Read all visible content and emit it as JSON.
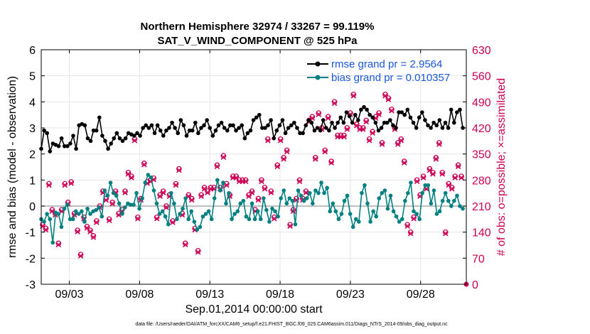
{
  "chart_data": {
    "type": "line",
    "title": "Northern Hemisphere 32974 / 33267 = 99.119%",
    "subtitle": "SAT_V_WIND_COMPONENT @ 525 hPa",
    "xlabel": "Sep.01,2014 00:00:00 start",
    "ylabel_left": "rmse and bias (model - observation)",
    "ylabel_right": "# of obs: o=possible; ×=assimilated",
    "x_ticks": [
      "09/03",
      "09/08",
      "09/13",
      "09/18",
      "09/23",
      "09/28"
    ],
    "y_left_ticks": [
      "-3",
      "-2",
      "-1",
      "0",
      "1",
      "2",
      "3",
      "4",
      "5",
      "6"
    ],
    "y_right_ticks": [
      "0",
      "70",
      "140",
      "210",
      "280",
      "350",
      "420",
      "490",
      "560",
      "630"
    ],
    "xlim_days": [
      1.0,
      31.25
    ],
    "ylim_left": [
      -3,
      6
    ],
    "ylim_right": [
      0,
      630
    ],
    "x_tick_days": [
      3,
      8,
      13,
      18,
      23,
      28
    ],
    "grid": true,
    "legend_location": "top-right",
    "series": [
      {
        "name": "rmse grand pr = 2.9564",
        "color": "#000000",
        "axis": "left",
        "values": [
          2.2,
          2.9,
          2.8,
          2.1,
          2.4,
          2.35,
          2.3,
          2.6,
          2.3,
          2.3,
          2.4,
          2.7,
          2.2,
          3.1,
          3.15,
          3.1,
          2.6,
          2.5,
          2.9,
          2.9,
          3.4,
          2.7,
          2.5,
          2.2,
          2.4,
          2.6,
          2.8,
          2.6,
          2.5,
          2.6,
          2.8,
          2.75,
          2.7,
          2.8,
          2.7,
          3.0,
          3.1,
          3.0,
          3.1,
          2.8,
          3.1,
          2.9,
          2.7,
          2.9,
          3.0,
          3.2,
          3.0,
          2.8,
          3.3,
          3.1,
          2.7,
          2.9,
          2.9,
          3.2,
          2.8,
          3.0,
          3.1,
          3.3,
          3.0,
          2.7,
          2.9,
          3.1,
          3.2,
          3.0,
          2.9,
          3.1,
          3.1,
          2.9,
          3.0,
          3.1,
          2.6,
          2.8,
          2.9,
          3.3,
          3.4,
          3.5,
          3.0,
          3.0,
          3.1,
          3.3,
          2.6,
          2.9,
          3.1,
          3.3,
          2.8,
          3.0,
          3.1,
          3.2,
          3.0,
          2.8,
          2.8,
          3.1,
          3.3,
          3.2,
          2.9,
          3.0,
          2.9,
          3.3,
          3.0,
          2.9,
          3.2,
          3.0,
          3.2,
          3.4,
          3.2,
          3.6,
          3.45,
          3.2,
          3.5,
          3.3,
          3.7,
          3.8,
          3.7,
          3.5,
          3.4,
          3.2,
          2.9,
          3.0,
          3.2,
          3.2,
          3.3,
          3.1,
          3.0,
          3.6,
          3.6,
          3.5,
          3.7,
          3.4,
          3.2,
          3.0,
          3.4,
          3.6,
          3.3,
          3.1,
          3.0,
          3.2,
          3.1,
          3.3,
          3.0,
          3.2,
          3.0,
          3.7,
          3.2,
          3.6,
          3.7,
          3.0
        ]
      },
      {
        "name": "bias grand pr = 0.010357",
        "color": "#008080",
        "axis": "left",
        "values": [
          -0.5,
          -0.6,
          -0.3,
          -0.5,
          -1.4,
          -0.25,
          -0.3,
          -0.8,
          -0.1,
          0.05,
          -0.5,
          -0.5,
          -0.2,
          -0.3,
          -0.2,
          -0.6,
          -0.1,
          -0.3,
          -0.2,
          -0.15,
          -0.05,
          -0.4,
          0.6,
          0.4,
          0.9,
          0.5,
          0.4,
          0.1,
          -0.3,
          -0.05,
          0.1,
          0.05,
          0.05,
          0.5,
          -0.1,
          0.3,
          0.9,
          1.2,
          1.1,
          0.6,
          0.1,
          -0.3,
          -0.2,
          -0.4,
          -0.7,
          0.5,
          0.1,
          -0.5,
          -0.3,
          -0.1,
          0.3,
          -0.5,
          -0.2,
          -0.6,
          -0.9,
          -0.8,
          -0.4,
          -0.3,
          -0.2,
          -0.5,
          0.3,
          1.0,
          0.6,
          0.9,
          0.1,
          0.5,
          -0.5,
          -0.3,
          -0.2,
          0.1,
          0.2,
          -0.4,
          -0.5,
          0.1,
          -0.5,
          -0.2,
          -0.5,
          0.3,
          -0.15,
          -0.6,
          -0.1,
          -0.2,
          -0.4,
          0.3,
          0.6,
          0.1,
          0.3,
          0.2,
          -0.7,
          0.6,
          0.4,
          0.2,
          0.3,
          0.5,
          0.1,
          0.6,
          0.5,
          0.9,
          0.5,
          0.7,
          -0.2,
          0.1,
          -0.2,
          -0.5,
          -0.3,
          0.2,
          0.4,
          -0.3,
          -0.8,
          -0.5,
          -0.6,
          0.5,
          0.8,
          0.1,
          -0.6,
          -0.2,
          -0.4,
          0.3,
          0.5,
          0.6,
          -0.1,
          0.4,
          -0.2,
          -0.4,
          -0.6,
          -0.5,
          0.2,
          0.5,
          0.9,
          -0.2,
          -0.3,
          -0.5,
          0.5,
          0.8,
          0.8,
          0.1,
          0.6,
          -0.3,
          -0.2,
          0.2,
          0.5,
          0.2,
          0.0,
          0.2,
          0.4,
          0.0,
          -0.1
        ]
      },
      {
        "name": "possible obs (o)",
        "color": "#cc0055",
        "axis": "right",
        "marker": "circle",
        "values": [
          160,
          150,
          270,
          200,
          190,
          110,
          200,
          270,
          220,
          275,
          190,
          145,
          80,
          180,
          155,
          145,
          130,
          170,
          210,
          250,
          230,
          175,
          220,
          250,
          190,
          200,
          250,
          300,
          290,
          390,
          180,
          230,
          325,
          275,
          280,
          285,
          180,
          240,
          250,
          210,
          240,
          170,
          270,
          310,
          190,
          110,
          240,
          230,
          150,
          90,
          240,
          260,
          250,
          260,
          260,
          320,
          260,
          345,
          270,
          240,
          290,
          290,
          280,
          280,
          280,
          240,
          250,
          200,
          230,
          280,
          260,
          390,
          250,
          180,
          320,
          390,
          340,
          360,
          160,
          200,
          230,
          280,
          230,
          250,
          440,
          450,
          340,
          460,
          420,
          360,
          450,
          330,
          490,
          400,
          400,
          400,
          420,
          460,
          510,
          430,
          420,
          420,
          440,
          390,
          410,
          450,
          460,
          380,
          510,
          500,
          470,
          420,
          380,
          390,
          330,
          160,
          140,
          180,
          280,
          240,
          290,
          260,
          310,
          300,
          340,
          380,
          300,
          140,
          270,
          260,
          290,
          320,
          290
        ]
      },
      {
        "name": "assimilated obs (×)",
        "color": "#cc0055",
        "axis": "right",
        "marker": "x",
        "values": [
          160,
          150,
          270,
          200,
          190,
          110,
          200,
          270,
          220,
          275,
          190,
          145,
          80,
          180,
          155,
          145,
          130,
          170,
          210,
          250,
          230,
          175,
          220,
          250,
          190,
          200,
          250,
          300,
          290,
          390,
          180,
          230,
          325,
          275,
          280,
          285,
          180,
          240,
          250,
          210,
          240,
          170,
          270,
          310,
          190,
          110,
          240,
          230,
          150,
          90,
          240,
          260,
          250,
          260,
          260,
          320,
          260,
          345,
          270,
          240,
          290,
          290,
          280,
          280,
          280,
          240,
          250,
          200,
          230,
          280,
          260,
          390,
          250,
          180,
          320,
          390,
          340,
          360,
          160,
          200,
          230,
          280,
          230,
          250,
          440,
          450,
          340,
          460,
          420,
          360,
          450,
          330,
          490,
          400,
          400,
          400,
          420,
          460,
          510,
          430,
          420,
          420,
          440,
          390,
          410,
          450,
          460,
          380,
          510,
          500,
          470,
          420,
          380,
          390,
          330,
          160,
          140,
          180,
          280,
          240,
          290,
          260,
          310,
          300,
          340,
          380,
          300,
          140,
          270,
          260,
          290,
          320,
          290
        ]
      }
    ],
    "legend": [
      {
        "label": "rmse grand pr = 2.9564"
      },
      {
        "label": "bias grand pr = 0.010357"
      }
    ],
    "endpoint_marker_right": 0
  },
  "footer": "data file: /Users/raeder/DAI/ATM_forcXX/CAM6_setup/f.e21.FHIST_BGC.f09_025.CAM6assim.011/Diags_NTrS_2014-09/obs_diag_output.nc",
  "colors": {
    "black": "#000000",
    "teal": "#008080",
    "magenta": "#cc0055",
    "legend_text": "#1a56db",
    "grid": "#e6e6e6",
    "zero_line": "#aaaaaa"
  }
}
